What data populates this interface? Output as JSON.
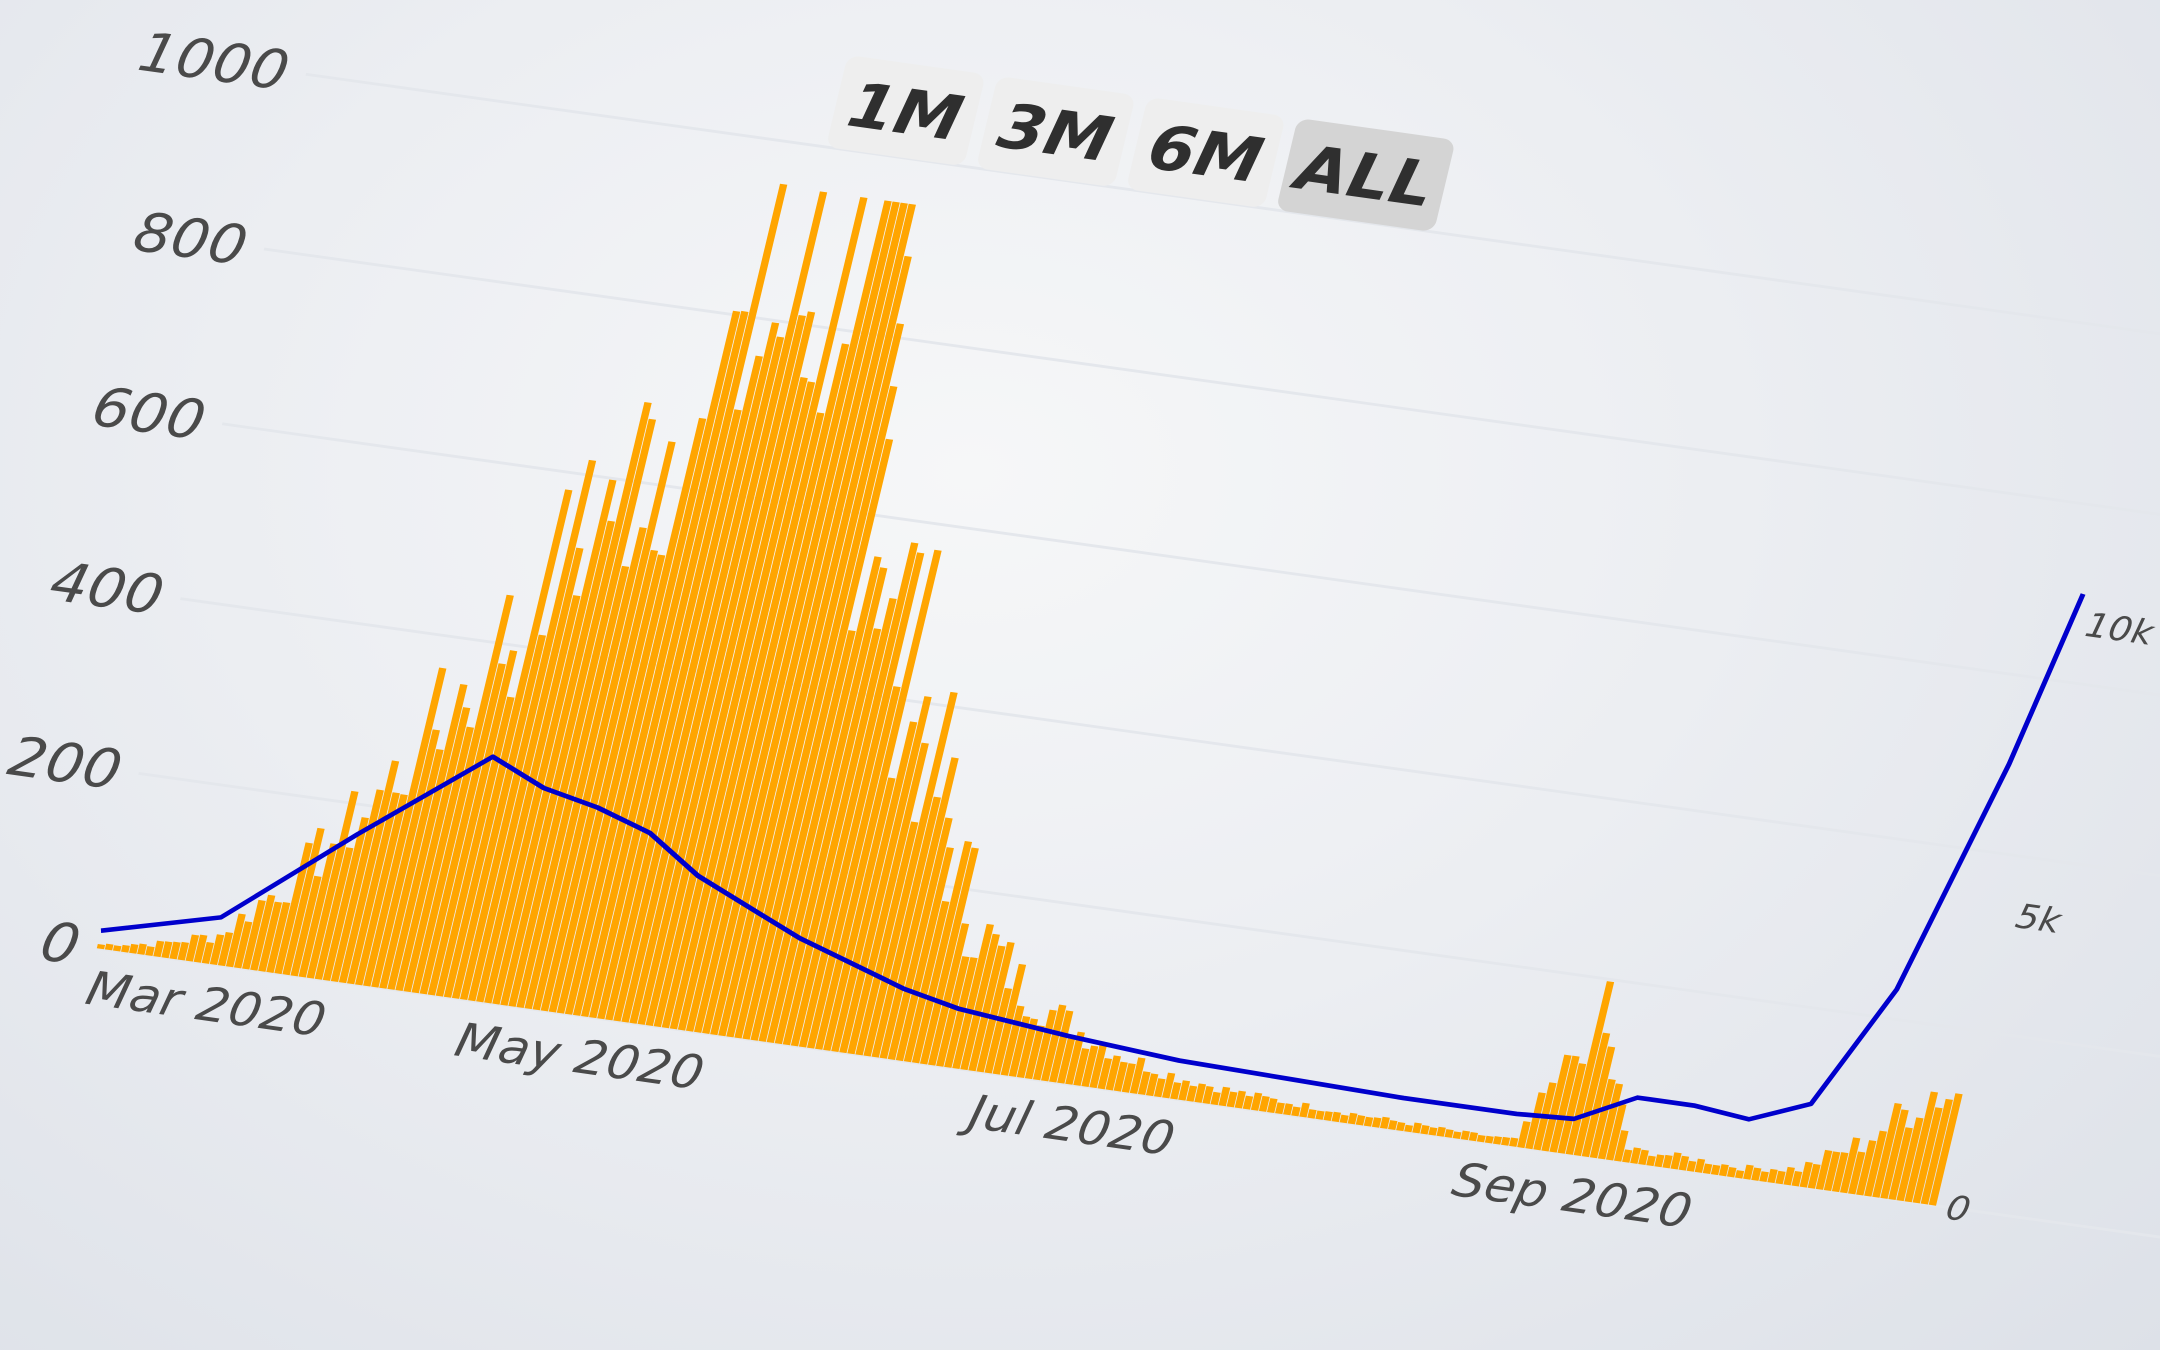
{
  "range_selector": {
    "buttons": [
      {
        "label": "1M",
        "active": false
      },
      {
        "label": "3M",
        "active": false
      },
      {
        "label": "6M",
        "active": false
      },
      {
        "label": "ALL",
        "active": true
      }
    ]
  },
  "colors": {
    "bars": "#ffa500",
    "line": "#0000cc",
    "grid": "#e4e7ec",
    "button_bg": "#eeeeee",
    "button_active_bg": "#d4d4d4"
  },
  "chart_data": {
    "type": "bar",
    "title": "",
    "xlabel": "",
    "ylabel": "",
    "x_ticks": [
      "Mar 2020",
      "May 2020",
      "Jul 2020",
      "Sep 2020"
    ],
    "x_range": [
      "2020-03-01",
      "2020-10-15"
    ],
    "y_ticks": [
      0,
      200,
      400,
      600,
      800,
      1000
    ],
    "ylim": [
      0,
      1000
    ],
    "y2_ticks": [
      "0",
      "5k",
      "10k"
    ],
    "y2lim": [
      0,
      15000
    ],
    "grid": true,
    "series": [
      {
        "type": "bar",
        "axis": "left",
        "points": [
          [
            "2020-03-01",
            5
          ],
          [
            "2020-03-08",
            15
          ],
          [
            "2020-03-15",
            35
          ],
          [
            "2020-03-22",
            110
          ],
          [
            "2020-03-29",
            200
          ],
          [
            "2020-04-05",
            330
          ],
          [
            "2020-04-12",
            460
          ],
          [
            "2020-04-19",
            600
          ],
          [
            "2020-04-26",
            720
          ],
          [
            "2020-05-03",
            820
          ],
          [
            "2020-05-10",
            900
          ],
          [
            "2020-05-14",
            950
          ],
          [
            "2020-05-17",
            760
          ],
          [
            "2020-05-24",
            580
          ],
          [
            "2020-05-31",
            420
          ],
          [
            "2020-06-07",
            270
          ],
          [
            "2020-06-14",
            160
          ],
          [
            "2020-06-21",
            100
          ],
          [
            "2020-06-28",
            65
          ],
          [
            "2020-07-05",
            40
          ],
          [
            "2020-07-12",
            25
          ],
          [
            "2020-07-19",
            18
          ],
          [
            "2020-07-26",
            14
          ],
          [
            "2020-08-02",
            12
          ],
          [
            "2020-08-09",
            10
          ],
          [
            "2020-08-16",
            8
          ],
          [
            "2020-08-23",
            8
          ],
          [
            "2020-08-30",
            160
          ],
          [
            "2020-09-06",
            15
          ],
          [
            "2020-09-13",
            15
          ],
          [
            "2020-09-20",
            12
          ],
          [
            "2020-09-27",
            20
          ],
          [
            "2020-10-04",
            60
          ],
          [
            "2020-10-11",
            130
          ]
        ]
      },
      {
        "type": "line",
        "axis": "right",
        "points": [
          [
            "2020-03-01",
            300
          ],
          [
            "2020-03-15",
            800
          ],
          [
            "2020-03-29",
            2500
          ],
          [
            "2020-04-12",
            4100
          ],
          [
            "2020-04-19",
            3700
          ],
          [
            "2020-04-26",
            3500
          ],
          [
            "2020-05-03",
            3200
          ],
          [
            "2020-05-10",
            2600
          ],
          [
            "2020-05-17",
            2200
          ],
          [
            "2020-05-24",
            1800
          ],
          [
            "2020-05-31",
            1500
          ],
          [
            "2020-06-07",
            1200
          ],
          [
            "2020-06-14",
            1000
          ],
          [
            "2020-06-28",
            800
          ],
          [
            "2020-07-12",
            650
          ],
          [
            "2020-07-26",
            600
          ],
          [
            "2020-08-09",
            550
          ],
          [
            "2020-08-23",
            550
          ],
          [
            "2020-08-30",
            600
          ],
          [
            "2020-09-06",
            1100
          ],
          [
            "2020-09-13",
            1100
          ],
          [
            "2020-09-20",
            1000
          ],
          [
            "2020-09-27",
            1400
          ],
          [
            "2020-10-04",
            3500
          ],
          [
            "2020-10-11",
            7500
          ],
          [
            "2020-10-15",
            10500
          ]
        ]
      }
    ]
  }
}
